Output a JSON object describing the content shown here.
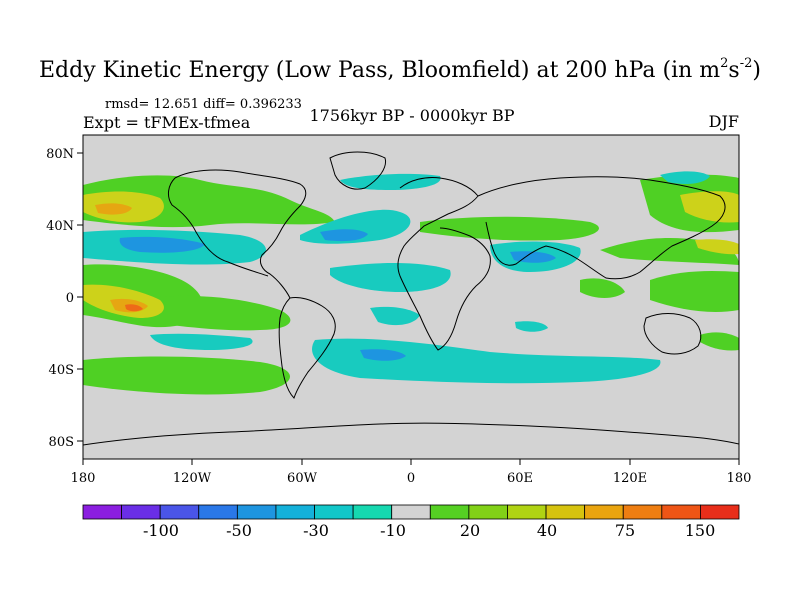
{
  "title": {
    "main": "Eddy Kinetic Energy (Low Pass, Bloomfield) at 200 hPa (in m",
    "sup1": "2",
    "mid": "s",
    "sup2": "-2",
    "end": ")"
  },
  "stats": "rmsd= 12.651 diff= 0.396233",
  "experiment": "Expt = tFMEx-tfmea",
  "period": "1756kyr BP - 0000kyr BP",
  "season": "DJF",
  "map": {
    "lat_ticks": [
      "80N",
      "40N",
      "0",
      "40S",
      "80S"
    ],
    "lon_ticks": [
      "180",
      "120W",
      "60W",
      "0",
      "60E",
      "120E",
      "180"
    ],
    "background_color": "#d3d3d3"
  },
  "colorbar": {
    "labels": [
      "-100",
      "-50",
      "-30",
      "-10",
      "20",
      "40",
      "75",
      "150"
    ],
    "colors": [
      "#8b1ee0",
      "#6a2ee6",
      "#4a55e8",
      "#2a78e8",
      "#1e95e0",
      "#14b1da",
      "#12c7c9",
      "#16d8b0",
      "#d3d3d3",
      "#55d023",
      "#82d117",
      "#b0d313",
      "#d6c30f",
      "#e9a40f",
      "#ee7e12",
      "#ee5516",
      "#e82e1a"
    ]
  }
}
